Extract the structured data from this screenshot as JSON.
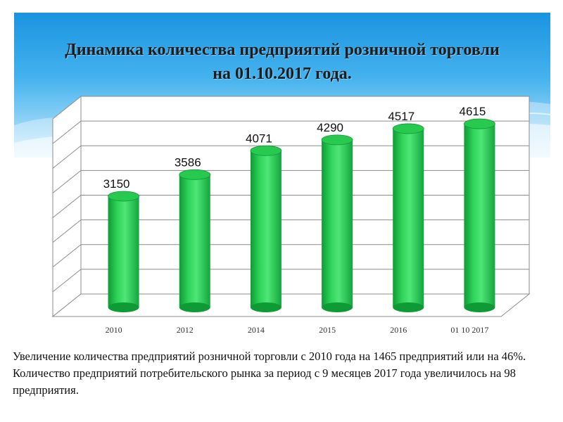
{
  "title_lines": [
    "Динамика количества предприятий розничной торговли",
    "на 01.10.2017 года."
  ],
  "chart_data": {
    "type": "bar",
    "title": "Динамика количества предприятий розничной торговли на 01.10.2017 года.",
    "categories": [
      "2010",
      "2012",
      "2014",
      "2015",
      "2016",
      "01 10 2017"
    ],
    "values": [
      3150,
      3586,
      4071,
      4290,
      4517,
      4615
    ],
    "xlabel": "",
    "ylabel": "",
    "ylim": [
      1000,
      5000
    ],
    "bar_color": "#1fc24a",
    "grid": true,
    "legend": "none"
  },
  "footnote": {
    "paragraph1": "Увеличение количества предприятий розничной торговли с 2010 года на  1465 предприятий или на 46%.",
    "paragraph2": "Количество предприятий потребительского рынка за период с 9 месяцев 2017 года увеличилось на 98 предприятия."
  },
  "colors": {
    "banner_top": "#1a94e0",
    "banner_bottom": "#d4f0fd",
    "bar_green": "#1fc24a",
    "grid_line": "#8c8c8c"
  }
}
